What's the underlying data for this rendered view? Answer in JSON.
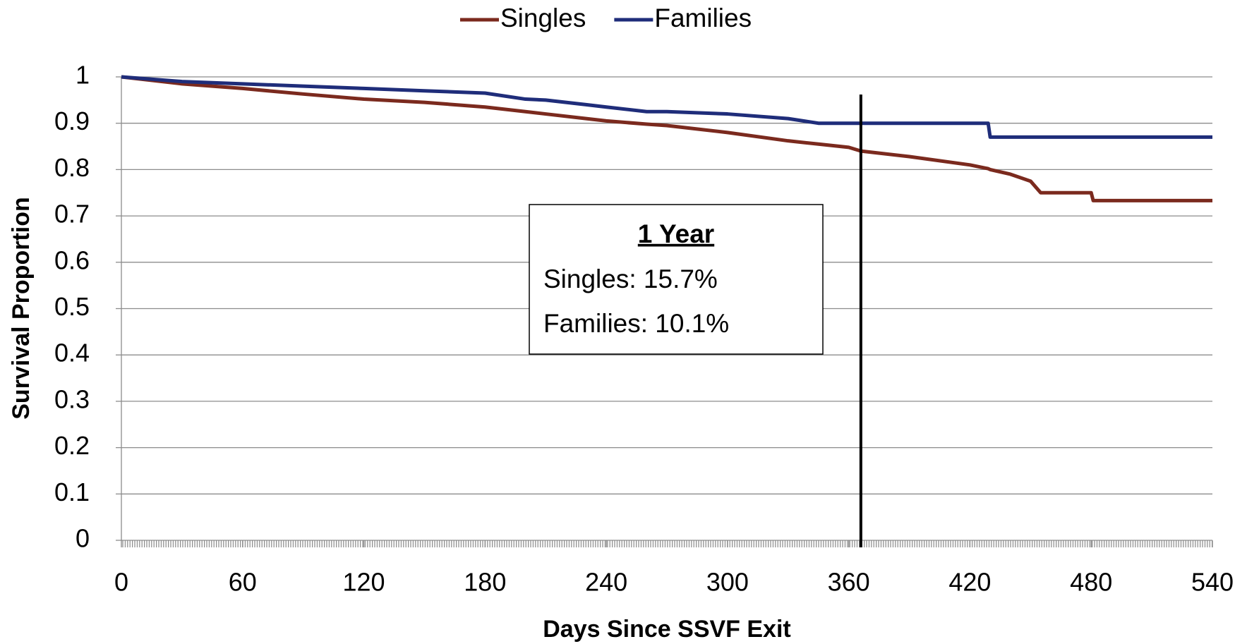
{
  "chart_data": {
    "type": "line",
    "xlabel": "Days Since SSVF Exit",
    "ylabel": "Survival Proportion",
    "x": [
      0,
      30,
      60,
      90,
      120,
      150,
      180,
      200,
      210,
      230,
      240,
      260,
      270,
      300,
      330,
      345,
      360,
      366,
      390,
      420,
      429,
      430,
      440,
      450,
      455,
      480,
      481,
      540
    ],
    "series": [
      {
        "name": "Singles",
        "color": "#7b2a1e",
        "values": [
          1,
          0.985,
          0.975,
          0.963,
          0.952,
          0.945,
          0.935,
          0.925,
          0.92,
          0.91,
          0.905,
          0.898,
          0.895,
          0.88,
          0.862,
          0.855,
          0.848,
          0.84,
          0.828,
          0.81,
          0.802,
          0.8,
          0.79,
          0.775,
          0.75,
          0.75,
          0.733,
          0.733
        ]
      },
      {
        "name": "Families",
        "color": "#1f2d7a",
        "values": [
          1,
          0.99,
          0.985,
          0.98,
          0.975,
          0.97,
          0.965,
          0.952,
          0.95,
          0.94,
          0.935,
          0.925,
          0.925,
          0.92,
          0.91,
          0.9,
          0.9,
          0.9,
          0.9,
          0.9,
          0.9,
          0.87,
          0.87,
          0.87,
          0.87,
          0.87,
          0.87,
          0.87
        ]
      }
    ],
    "xlim": [
      0,
      540
    ],
    "xticks": [
      0,
      60,
      120,
      180,
      240,
      300,
      360,
      420,
      480,
      540
    ],
    "ylim": [
      0,
      1
    ],
    "yticks": [
      0,
      0.1,
      0.2,
      0.3,
      0.4,
      0.5,
      0.6,
      0.7,
      0.8,
      0.9,
      1
    ],
    "grid": true,
    "legend": "top",
    "vline_x": 366,
    "annotation": {
      "title": "1 Year",
      "lines": [
        "Singles: 15.7%",
        "Families: 10.1%"
      ]
    }
  }
}
